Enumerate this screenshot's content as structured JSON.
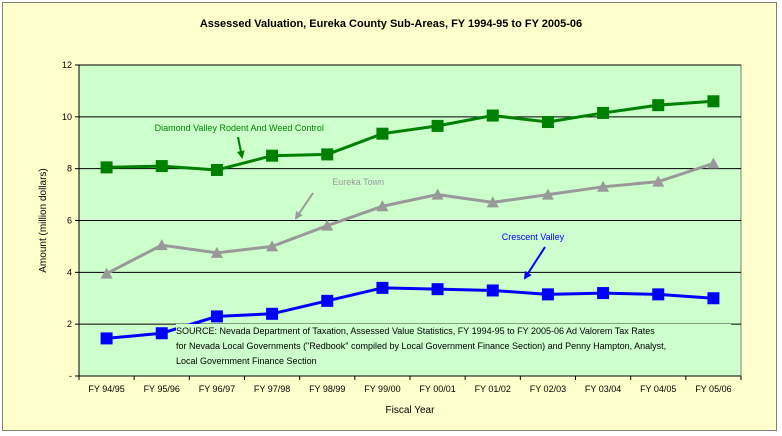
{
  "chart_data": {
    "type": "line",
    "title": "Assessed Valuation, Eureka County Sub-Areas, FY 1994-95 to FY 2005-06",
    "xlabel": "Fiscal Year",
    "ylabel": "Amount (million dollars)",
    "ylim": [
      0,
      12
    ],
    "yticks": [
      0,
      2,
      4,
      6,
      8,
      10,
      12
    ],
    "ytick_labels": [
      "-",
      "2",
      "4",
      "6",
      "8",
      "10",
      "12"
    ],
    "grid": true,
    "categories": [
      "FY 94/95",
      "FY 95/96",
      "FY 96/97",
      "FY 97/98",
      "FY 98/99",
      "FY 99/00",
      "FY 00/01",
      "FY 01/02",
      "FY 02/03",
      "FY 03/04",
      "FY 04/05",
      "FY 05/06"
    ],
    "series": [
      {
        "name": "Diamond Valley Rodent And Weed Control",
        "color": "#008000",
        "marker": "square",
        "values": [
          8.05,
          8.1,
          7.95,
          8.5,
          8.55,
          9.35,
          9.65,
          10.05,
          9.8,
          10.15,
          10.45,
          10.6
        ]
      },
      {
        "name": "Eureka Town",
        "color": "#999999",
        "marker": "triangle",
        "values": [
          3.95,
          5.05,
          4.75,
          5.0,
          5.8,
          6.55,
          7.0,
          6.7,
          7.0,
          7.3,
          7.5,
          8.2
        ]
      },
      {
        "name": "Crescent Valley",
        "color": "#0000ff",
        "marker": "square",
        "values": [
          1.45,
          1.65,
          2.3,
          2.4,
          2.9,
          3.4,
          3.35,
          3.3,
          3.15,
          3.2,
          3.15,
          3.0
        ]
      }
    ],
    "source_lines": [
      "SOURCE: Nevada Department of Taxation, Assessed Value Statistics, FY 1994-95 to FY 2005-06  Ad Valorem Tax Rates",
      "for Nevada Local Governments (\"Redbook\" compiled by Local Government Finance Section) and Penny Hampton, Analyst,",
      "Local Government Finance Section"
    ],
    "colors": {
      "plot_background": "#ccffcc",
      "chart_background": "#ffffcc"
    }
  }
}
